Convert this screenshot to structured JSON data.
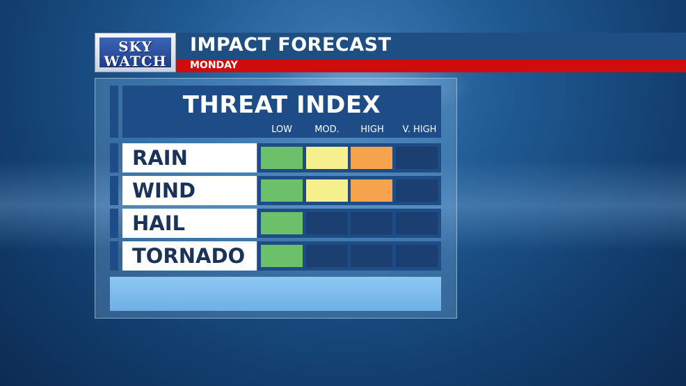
{
  "logo": {
    "line1": "SKY",
    "line2": "WATCH"
  },
  "header": {
    "title": "IMPACT FORECAST",
    "subtitle": "MONDAY"
  },
  "table": {
    "title": "THREAT INDEX",
    "levels": [
      "LOW",
      "MOD.",
      "HIGH",
      "V. HIGH"
    ],
    "level_colors": {
      "low": "#6cc06a",
      "mod": "#f6ef8e",
      "high": "#f7a24c",
      "vhigh": "#e64b3b",
      "empty": "#1a3f70"
    },
    "rows": [
      {
        "label": "RAIN",
        "level": 3
      },
      {
        "label": "WIND",
        "level": 3
      },
      {
        "label": "HAIL",
        "level": 1
      },
      {
        "label": "TORNADO",
        "level": 1
      }
    ]
  }
}
